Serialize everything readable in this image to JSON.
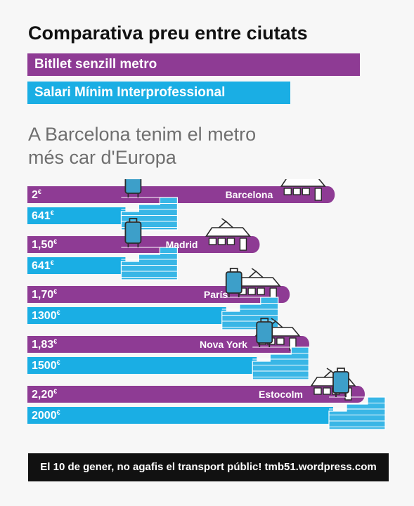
{
  "title": "Comparativa preu entre ciutats",
  "legend": {
    "metro_label": "Bitllet senzill metro",
    "salary_label": "Salari Mínim Interprofessional",
    "metro_color": "#8e3b94",
    "salary_color": "#1aaee4"
  },
  "subtitle": {
    "line1": "A Barcelona tenim el metro",
    "line2": "més car d'Europa"
  },
  "chart_data": {
    "type": "bar",
    "categories": [
      "Barcelona",
      "Madrid",
      "París",
      "Nova York",
      "Estocolm"
    ],
    "series": [
      {
        "values": [
          2.0,
          1.5,
          1.7,
          1.83,
          2.2
        ],
        "labels": [
          "2",
          "1,50",
          "1,70",
          "1,83",
          "2,20"
        ],
        "unit": "€"
      },
      {
        "values": [
          641,
          641,
          1300,
          1500,
          2000
        ],
        "labels": [
          "641",
          "641",
          "1300",
          "1500",
          "2000"
        ],
        "unit": "€"
      }
    ],
    "icons": [
      "tram-icon",
      "suitcase-icon",
      "brick-wall-icon"
    ]
  },
  "footer": {
    "text": "El 10 de gener, no agafis el transport públic! tmb51.wordpress.com"
  }
}
